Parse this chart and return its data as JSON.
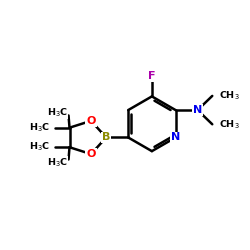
{
  "bg_color": "#ffffff",
  "bond_color": "#000000",
  "bond_width": 1.8,
  "atom_colors": {
    "N_pyridine": "#0000ee",
    "N_amine": "#0000ee",
    "O": "#ff0000",
    "B": "#8b8b00",
    "F": "#aa00aa",
    "C": "#000000"
  },
  "font_size_atom": 8.0,
  "font_size_label": 6.8,
  "figsize": [
    2.5,
    2.5
  ],
  "dpi": 100,
  "xlim": [
    0,
    10
  ],
  "ylim": [
    0,
    10
  ]
}
